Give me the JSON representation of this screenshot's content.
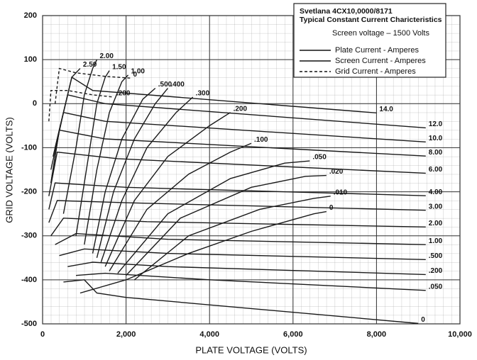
{
  "chart_data": {
    "type": "line",
    "title": "Svetlana 4CX10,0000/8171",
    "subtitle": "Typical Constant Current Charicteristics",
    "annotation": "Screen voltage – 1500 Volts",
    "x_label": "PLATE VOLTAGE (VOLTS)",
    "y_label": "GRID VOLTAGE (VOLTS)",
    "xlim": [
      0,
      10000
    ],
    "ylim": [
      -500,
      200
    ],
    "xticks": [
      0,
      {
        "value": 2000,
        "label": "2,000"
      },
      {
        "value": 4000,
        "label": "4,000"
      },
      {
        "value": 6000,
        "label": "6,000"
      },
      {
        "value": 8000,
        "label": "8,000"
      },
      {
        "value": 10000,
        "label": "10,000"
      }
    ],
    "yticks": [
      200,
      100,
      0,
      -100,
      -200,
      -300,
      -400,
      -500
    ],
    "grid": true,
    "legend": [
      {
        "label": "Plate Current - Amperes",
        "dash": false
      },
      {
        "label": "Screen Current - Amperes",
        "dash": false
      },
      {
        "label": "Grid Current - Amperes",
        "dash": true
      }
    ],
    "series": [
      {
        "name": "14.0",
        "color": "#1a1a1a",
        "dash": false,
        "x": [
          300,
          700,
          1200,
          8000
        ],
        "values": [
          -100,
          60,
          30,
          -21
        ]
      },
      {
        "name": "12.0",
        "color": "#1a1a1a",
        "dash": false,
        "x": [
          250,
          600,
          1500,
          9180
        ],
        "values": [
          -120,
          20,
          0,
          -55
        ]
      },
      {
        "name": "10.0",
        "color": "#1a1a1a",
        "dash": false,
        "x": [
          200,
          500,
          1500,
          9180
        ],
        "values": [
          -150,
          -20,
          -40,
          -87
        ]
      },
      {
        "name": "8.00",
        "color": "#1a1a1a",
        "dash": false,
        "x": [
          200,
          400,
          1500,
          9180
        ],
        "values": [
          -180,
          -60,
          -80,
          -119
        ]
      },
      {
        "name": "6.00",
        "color": "#1a1a1a",
        "dash": false,
        "x": [
          150,
          350,
          1800,
          9180
        ],
        "values": [
          -210,
          -110,
          -125,
          -158
        ]
      },
      {
        "name": "4.00",
        "color": "#1a1a1a",
        "dash": false,
        "x": [
          150,
          300,
          2000,
          9180
        ],
        "values": [
          -240,
          -180,
          -190,
          -209
        ]
      },
      {
        "name": "3.00",
        "color": "#1a1a1a",
        "dash": false,
        "x": [
          150,
          350,
          2000,
          9180
        ],
        "values": [
          -270,
          -220,
          -225,
          -242
        ]
      },
      {
        "name": "2.00",
        "color": "#1a1a1a",
        "dash": false,
        "x": [
          200,
          500,
          2500,
          9180
        ],
        "values": [
          -300,
          -260,
          -268,
          -280
        ]
      },
      {
        "name": "1.00",
        "color": "#1a1a1a",
        "dash": false,
        "x": [
          300,
          800,
          3000,
          9180
        ],
        "values": [
          -320,
          -295,
          -308,
          -320
        ]
      },
      {
        "name": ".500",
        "color": "#1a1a1a",
        "dash": false,
        "x": [
          400,
          1000,
          3000,
          9180
        ],
        "values": [
          -345,
          -330,
          -340,
          -354
        ]
      },
      {
        "name": ".200",
        "color": "#1a1a1a",
        "dash": false,
        "x": [
          600,
          1200,
          3000,
          9180
        ],
        "values": [
          -370,
          -360,
          -370,
          -388
        ]
      },
      {
        "name": ".050",
        "color": "#1a1a1a",
        "dash": false,
        "x": [
          800,
          1500,
          4000,
          9180
        ],
        "values": [
          -390,
          -385,
          -400,
          -424
        ]
      },
      {
        "name": "0",
        "color": "#1a1a1a",
        "dash": false,
        "x": [
          500,
          1000,
          1300,
          2000,
          9000
        ],
        "values": [
          -405,
          -400,
          -430,
          -440,
          -499
        ]
      },
      {
        "name": "2.50",
        "color": "#1a1a1a",
        "dash": false,
        "x": [
          200,
          400,
          700,
          900
        ],
        "values": [
          -180,
          -60,
          60,
          80
        ]
      },
      {
        "name": "2.00",
        "color": "#1a1a1a",
        "dash": false,
        "x": [
          500,
          800,
          1000,
          1200,
          1300
        ],
        "values": [
          -250,
          -100,
          20,
          80,
          100
        ]
      },
      {
        "name": "1.50",
        "color": "#1a1a1a",
        "dash": false,
        "x": [
          800,
          1100,
          1300,
          1500,
          1600
        ],
        "values": [
          -300,
          -120,
          0,
          60,
          75
        ]
      },
      {
        "name": "1.00",
        "color": "#1a1a1a",
        "dash": false,
        "x": [
          1000,
          1300,
          1600,
          1900,
          2050
        ],
        "values": [
          -320,
          -150,
          -20,
          50,
          65
        ]
      },
      {
        "name": ".500",
        "color": "#1a1a1a",
        "dash": false,
        "x": [
          1200,
          1500,
          1900,
          2400,
          2700
        ],
        "values": [
          -340,
          -200,
          -80,
          10,
          35
        ]
      },
      {
        "name": ".400",
        "color": "#1a1a1a",
        "dash": false,
        "x": [
          1300,
          1700,
          2200,
          2700,
          3000
        ],
        "values": [
          -350,
          -200,
          -80,
          0,
          35
        ]
      },
      {
        "name": ".300",
        "color": "#1a1a1a",
        "dash": false,
        "x": [
          1400,
          1900,
          2500,
          3200,
          3600
        ],
        "values": [
          -360,
          -220,
          -100,
          -20,
          15
        ]
      },
      {
        "name": ".200",
        "color": "#1a1a1a",
        "dash": false,
        "x": [
          1500,
          2200,
          3000,
          4000,
          4500
        ],
        "values": [
          -370,
          -220,
          -120,
          -50,
          -20
        ]
      },
      {
        "name": ".100",
        "color": "#1a1a1a",
        "dash": false,
        "x": [
          1600,
          2500,
          3500,
          4500,
          5000
        ],
        "values": [
          -380,
          -240,
          -160,
          -110,
          -90
        ]
      },
      {
        "name": ".050",
        "color": "#1a1a1a",
        "dash": false,
        "x": [
          1800,
          3000,
          4500,
          5800,
          6400
        ],
        "values": [
          -385,
          -250,
          -170,
          -135,
          -130
        ]
      },
      {
        "name": ".020",
        "color": "#1a1a1a",
        "dash": false,
        "x": [
          2000,
          3300,
          5000,
          6300,
          6800
        ],
        "values": [
          -390,
          -260,
          -190,
          -165,
          -163
        ]
      },
      {
        "name": ".010",
        "color": "#1a1a1a",
        "dash": false,
        "x": [
          2200,
          3500,
          5200,
          6500,
          6900
        ],
        "values": [
          -400,
          -300,
          -240,
          -215,
          -210
        ]
      },
      {
        "name": "0",
        "color": "#1a1a1a",
        "dash": false,
        "x": [
          900,
          2000,
          3500,
          5000,
          6500,
          6800
        ],
        "values": [
          -430,
          -400,
          -340,
          -290,
          -250,
          -245
        ]
      },
      {
        "name": ".200",
        "color": "#1a1a1a",
        "dash": true,
        "x": [
          150,
          200,
          600,
          1200,
          1700
        ],
        "values": [
          -40,
          30,
          30,
          20,
          15
        ]
      },
      {
        "name": "0",
        "color": "#1a1a1a",
        "dash": true,
        "x": [
          300,
          400,
          800,
          1500,
          2100
        ],
        "values": [
          0,
          80,
          70,
          62,
          58
        ]
      }
    ]
  }
}
